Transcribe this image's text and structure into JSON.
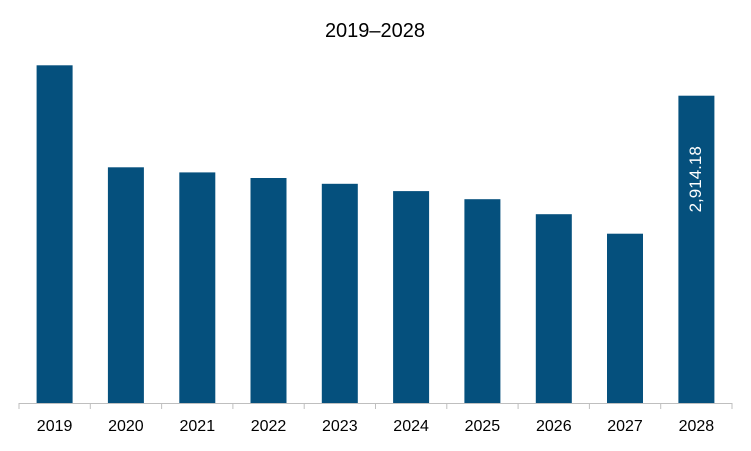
{
  "chart_data": {
    "type": "bar",
    "title": "2019–2028",
    "xlabel": "",
    "ylabel": "",
    "categories": [
      "2019",
      "2020",
      "2021",
      "2022",
      "2023",
      "2024",
      "2025",
      "2026",
      "2027",
      "2028"
    ],
    "values": [
      3202,
      2235,
      2187,
      2134,
      2079,
      2009,
      1933,
      1790,
      1605,
      2914.18
    ],
    "data_labels": {
      "2028": "2,914.18"
    },
    "ylim": [
      0,
      3300
    ],
    "grid": false,
    "legend": "none",
    "colors": {
      "bar": "#05507d",
      "axis": "#bfbfbf",
      "text": "#000000",
      "label": "#ffffff"
    }
  }
}
